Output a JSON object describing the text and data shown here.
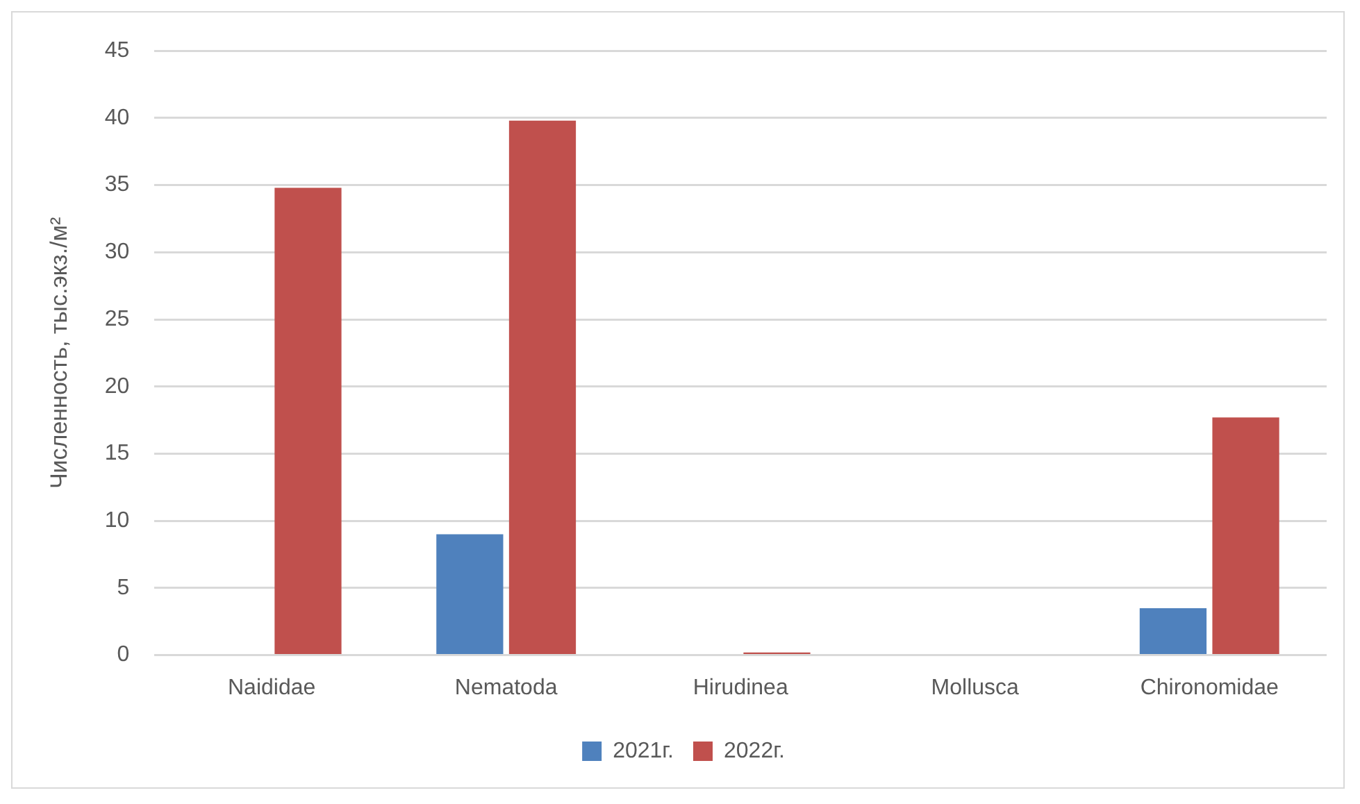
{
  "chart_data": {
    "type": "bar",
    "ylabel": "Численность, тыс.экз./м²",
    "categories": [
      "Naididae",
      "Nematoda",
      "Hirudinea",
      "Mollusca",
      "Chironomidae"
    ],
    "series": [
      {
        "name": "2021г.",
        "color": "#4f81bd",
        "values": [
          0,
          9.0,
          0,
          0,
          3.5
        ]
      },
      {
        "name": "2022г.",
        "color": "#c0504d",
        "values": [
          34.8,
          39.8,
          0.2,
          0,
          17.7
        ]
      }
    ],
    "ylim": [
      0,
      45
    ],
    "yticks": [
      0,
      5,
      10,
      15,
      20,
      25,
      30,
      35,
      40,
      45
    ],
    "grid": "y",
    "legend": "bottom"
  }
}
